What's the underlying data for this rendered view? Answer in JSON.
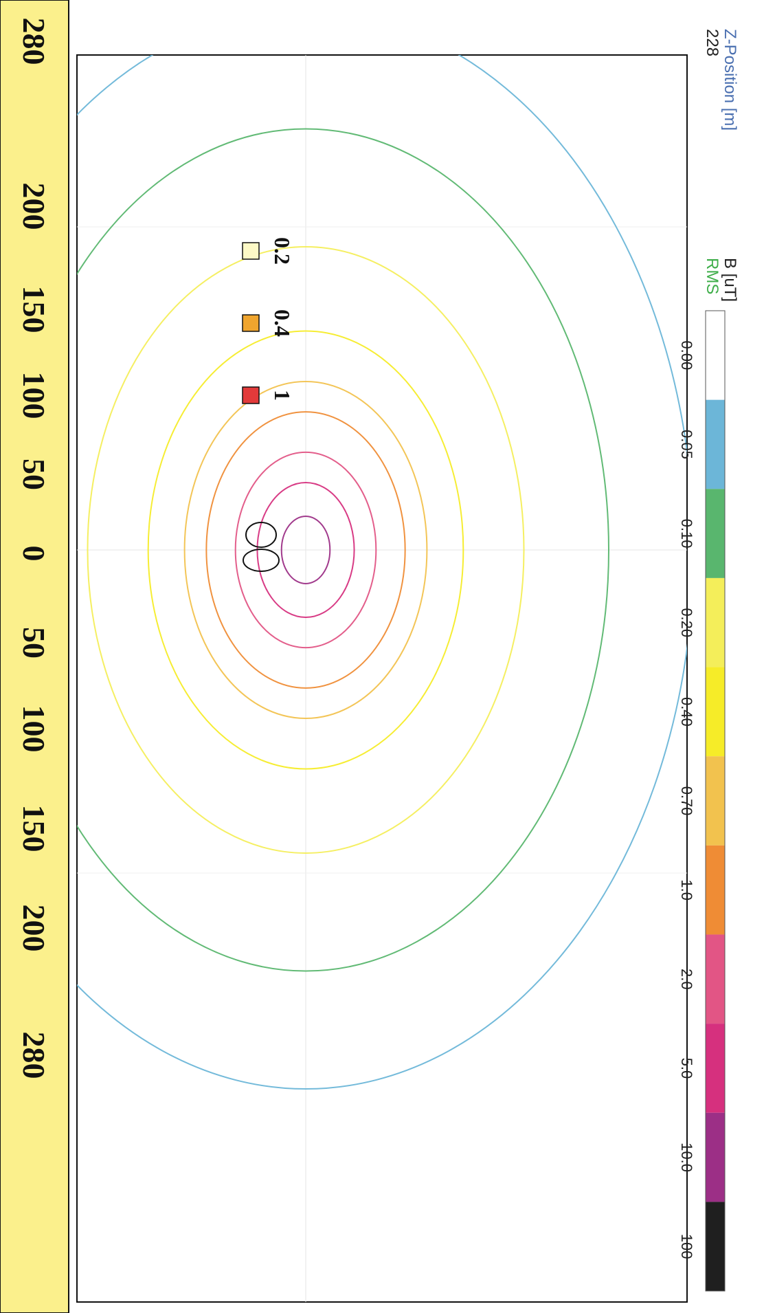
{
  "header": {
    "axis_title": "Z-Position [m]",
    "axis_value": "228",
    "quantity": "B [uT]",
    "mode": "RMS"
  },
  "colors": {
    "axis_title": "#4a6fb0",
    "mode": "#3fae4a",
    "scale_strip": "#fbf08c"
  },
  "colorbar": {
    "levels": [
      "0.00",
      "0.05",
      "0.10",
      "0.20",
      "0.40",
      "0.70",
      "1.0",
      "2.0",
      "5.0",
      "10.0",
      "100"
    ],
    "colors": [
      "#ffffff",
      "#6cb6d8",
      "#59b66e",
      "#f4ee5a",
      "#f6ec28",
      "#f2c24e",
      "#ef8c35",
      "#e25585",
      "#d6307e",
      "#9c2f86",
      "#1f1f1f"
    ]
  },
  "legend": [
    {
      "label": "0.2",
      "color": "#fdf9c6"
    },
    {
      "label": "0.4",
      "color": "#f0a52e"
    },
    {
      "label": "1",
      "color": "#e23a3a"
    }
  ],
  "scale": {
    "ticks": [
      "280",
      "200",
      "150",
      "100",
      "50",
      "0",
      "50",
      "100",
      "150",
      "200",
      "280"
    ]
  },
  "chart_data": {
    "type": "contour",
    "quantity": "B [uT]",
    "statistic": "RMS",
    "z_position_m": 228,
    "levels": [
      0.05,
      0.1,
      0.2,
      0.4,
      0.7,
      1.0,
      2.0,
      5.0,
      10.0,
      100
    ],
    "distance_ticks_m": [
      -280,
      -200,
      -150,
      -100,
      -50,
      0,
      50,
      100,
      150,
      200,
      280
    ],
    "contours": [
      {
        "level": 0.05,
        "color": "#6cb6d8",
        "half_width_m": 320
      },
      {
        "level": 0.1,
        "color": "#59b66e",
        "half_width_m": 250
      },
      {
        "level": 0.2,
        "color": "#f4ee5a",
        "half_width_m": 180
      },
      {
        "level": 0.4,
        "color": "#f6ec28",
        "half_width_m": 130
      },
      {
        "level": 0.7,
        "color": "#f2c24e",
        "half_width_m": 100
      },
      {
        "level": 1.0,
        "color": "#ef8c35",
        "half_width_m": 82
      },
      {
        "level": 2.0,
        "color": "#e25585",
        "half_width_m": 58
      },
      {
        "level": 5.0,
        "color": "#d6307e",
        "half_width_m": 40
      },
      {
        "level": 10.0,
        "color": "#9c2f86",
        "half_width_m": 20
      },
      {
        "level": 100,
        "color": "#1f1f1f",
        "half_width_m": 6
      }
    ]
  }
}
